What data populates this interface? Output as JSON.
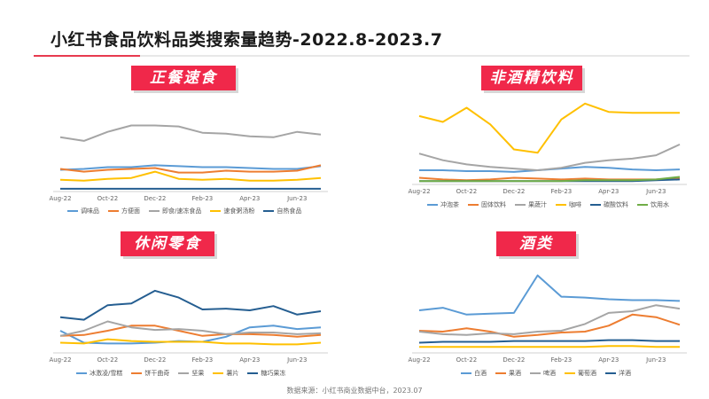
{
  "brand": "小红书",
  "title": "小红书食品饮料品类搜索量趋势-2022.8-2023.7",
  "source": "数据来源：小红书商业数据中台，2023.07",
  "colors": {
    "accent": "#f0284a"
  },
  "chart_data": [
    {
      "type": "line",
      "title": "正餐速食",
      "xlabel": "",
      "ylabel": "",
      "categories": [
        "Aug-22",
        "Sep-22",
        "Oct-22",
        "Nov-22",
        "Dec-22",
        "Jan-23",
        "Feb-23",
        "Mar-23",
        "Apr-23",
        "May-23",
        "Jun-23",
        "Jul-23"
      ],
      "tick_labels": [
        "Aug-22",
        "Oct-22",
        "Dec-22",
        "Feb-23",
        "Apr-23",
        "Jun-23"
      ],
      "ylim": [
        0,
        100
      ],
      "series": [
        {
          "name": "调味品",
          "color": "#5b9bd5",
          "values": [
            24,
            25,
            27,
            27,
            29,
            28,
            27,
            27,
            26,
            25,
            25,
            28
          ]
        },
        {
          "name": "方便面",
          "color": "#ed7d31",
          "values": [
            25,
            22,
            24,
            25,
            26,
            21,
            21,
            23,
            22,
            22,
            23,
            29
          ]
        },
        {
          "name": "即食/速冻食品",
          "color": "#a5a5a5",
          "values": [
            60,
            56,
            66,
            73,
            73,
            72,
            65,
            64,
            61,
            60,
            66,
            63
          ]
        },
        {
          "name": "速食粥汤粉",
          "color": "#ffc000",
          "values": [
            13,
            12,
            14,
            15,
            22,
            14,
            13,
            14,
            12,
            12,
            13,
            15
          ]
        },
        {
          "name": "自热食品",
          "color": "#255e91",
          "values": [
            3,
            3,
            3,
            3,
            3,
            3,
            3,
            3,
            3,
            3,
            3,
            3
          ]
        }
      ]
    },
    {
      "type": "line",
      "title": "非酒精饮料",
      "xlabel": "",
      "ylabel": "",
      "categories": [
        "Aug-22",
        "Sep-22",
        "Oct-22",
        "Nov-22",
        "Dec-22",
        "Jan-23",
        "Feb-23",
        "Mar-23",
        "Apr-23",
        "May-23",
        "Jun-23",
        "Jul-23"
      ],
      "tick_labels": [
        "Aug-22",
        "Oct-22",
        "Dec-22",
        "Feb-23",
        "Apr-23",
        "Jun-23"
      ],
      "ylim": [
        0,
        100
      ],
      "series": [
        {
          "name": "冲泡茶",
          "color": "#5b9bd5",
          "values": [
            17,
            17,
            16,
            16,
            15,
            17,
            19,
            21,
            20,
            18,
            17,
            18
          ]
        },
        {
          "name": "固体饮料",
          "color": "#ed7d31",
          "values": [
            8,
            6,
            5,
            6,
            8,
            7,
            6,
            7,
            6,
            6,
            6,
            7
          ]
        },
        {
          "name": "果蔬汁",
          "color": "#a5a5a5",
          "values": [
            37,
            29,
            24,
            21,
            19,
            17,
            20,
            26,
            29,
            31,
            35,
            48
          ]
        },
        {
          "name": "咖啡",
          "color": "#ffc000",
          "values": [
            82,
            75,
            92,
            72,
            42,
            38,
            78,
            97,
            87,
            86,
            86,
            86
          ]
        },
        {
          "name": "碳酸饮料",
          "color": "#255e91",
          "values": [
            4,
            4,
            4,
            4,
            4,
            4,
            4,
            4,
            4,
            4,
            5,
            6
          ]
        },
        {
          "name": "饮用水",
          "color": "#70ad47",
          "values": [
            4,
            4,
            4,
            4,
            4,
            4,
            4,
            5,
            5,
            5,
            6,
            9
          ]
        }
      ]
    },
    {
      "type": "line",
      "title": "休闲零食",
      "xlabel": "",
      "ylabel": "",
      "categories": [
        "Aug-22",
        "Sep-22",
        "Oct-22",
        "Nov-22",
        "Dec-22",
        "Jan-23",
        "Feb-23",
        "Mar-23",
        "Apr-23",
        "May-23",
        "Jun-23",
        "Jul-23"
      ],
      "tick_labels": [
        "Aug-22",
        "Oct-22",
        "Dec-22",
        "Feb-23",
        "Apr-23",
        "Jun-23"
      ],
      "ylim": [
        0,
        100
      ],
      "series": [
        {
          "name": "冰激凌/雪糕",
          "color": "#5b9bd5",
          "values": [
            26,
            12,
            11,
            11,
            12,
            14,
            13,
            19,
            30,
            32,
            28,
            30
          ]
        },
        {
          "name": "饼干曲奇",
          "color": "#ed7d31",
          "values": [
            20,
            21,
            26,
            32,
            32,
            26,
            20,
            22,
            22,
            21,
            19,
            21
          ]
        },
        {
          "name": "坚果",
          "color": "#a5a5a5",
          "values": [
            20,
            26,
            37,
            30,
            27,
            28,
            26,
            22,
            24,
            24,
            22,
            23
          ]
        },
        {
          "name": "薯片",
          "color": "#ffc000",
          "values": [
            12,
            11,
            16,
            14,
            13,
            13,
            13,
            11,
            11,
            10,
            10,
            12
          ]
        },
        {
          "name": "糖巧果冻",
          "color": "#255e91",
          "values": [
            42,
            39,
            56,
            58,
            73,
            65,
            51,
            52,
            50,
            55,
            45,
            49
          ]
        }
      ]
    },
    {
      "type": "line",
      "title": "酒类",
      "xlabel": "",
      "ylabel": "",
      "categories": [
        "Aug-22",
        "Sep-22",
        "Oct-22",
        "Nov-22",
        "Dec-22",
        "Jan-23",
        "Feb-23",
        "Mar-23",
        "Apr-23",
        "May-23",
        "Jun-23",
        "Jul-23"
      ],
      "tick_labels": [
        "Aug-22",
        "Oct-22",
        "Dec-22",
        "Feb-23",
        "Apr-23",
        "Jun-23"
      ],
      "ylim": [
        0,
        100
      ],
      "series": [
        {
          "name": "白酒",
          "color": "#5b9bd5",
          "values": [
            50,
            53,
            45,
            46,
            47,
            91,
            66,
            65,
            63,
            62,
            62,
            61
          ]
        },
        {
          "name": "果酒",
          "color": "#ed7d31",
          "values": [
            26,
            25,
            29,
            25,
            19,
            21,
            24,
            25,
            32,
            45,
            42,
            33
          ]
        },
        {
          "name": "啤酒",
          "color": "#a5a5a5",
          "values": [
            25,
            22,
            21,
            23,
            22,
            25,
            26,
            34,
            47,
            49,
            56,
            52
          ]
        },
        {
          "name": "葡萄酒",
          "color": "#ffc000",
          "values": [
            7,
            7,
            7,
            7,
            7,
            7,
            7,
            7,
            8,
            8,
            7,
            7
          ]
        },
        {
          "name": "洋酒",
          "color": "#255e91",
          "values": [
            12,
            13,
            13,
            13,
            14,
            14,
            14,
            14,
            15,
            15,
            14,
            14
          ]
        }
      ]
    }
  ]
}
